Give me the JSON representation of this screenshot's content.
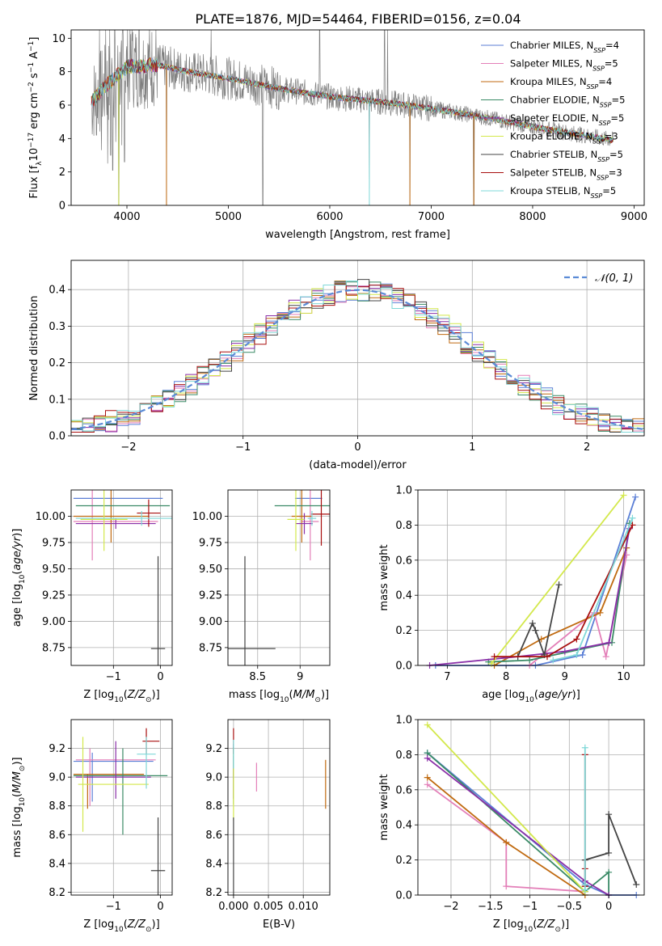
{
  "title": "PLATE=1876, MJD=54464, FIBERID=0156, z=0.04",
  "colors": {
    "chabrier_miles": "#5b7fd6",
    "salpeter_miles": "#e37fb8",
    "kroupa_miles": "#c06a10",
    "chabrier_elodie": "#3a8a66",
    "salpeter_elodie": "#8a2fa8",
    "kroupa_elodie": "#d3e84b",
    "chabrier_stelib": "#444444",
    "salpeter_stelib": "#a80f0f",
    "kroupa_stelib": "#7fd8d8",
    "grid": "#b0b0b0",
    "spectrum": "#7f7f7f",
    "normal_curve": "#5b8bd6"
  },
  "chart_data": [
    {
      "type": "line",
      "id": "spectrum",
      "xlabel": "wavelength [Angstrom, rest frame]",
      "ylabel_parts": [
        "Flux [f",
        "λ",
        "10",
        "−17",
        " erg cm",
        "−2",
        " s",
        "−1",
        " A",
        "−1",
        "]"
      ],
      "xlim": [
        3450,
        9100
      ],
      "ylim": [
        0,
        10.5
      ],
      "xticks": [
        4000,
        5000,
        6000,
        7000,
        8000,
        9000
      ],
      "yticks": [
        0,
        2,
        4,
        6,
        8,
        10
      ],
      "legend_position": "upper right",
      "legend": [
        {
          "key": "chabrier_miles",
          "label": "Chabrier MILES, N",
          "sub": "SSP",
          "suffix": "=4"
        },
        {
          "key": "salpeter_miles",
          "label": "Salpeter MILES, N",
          "sub": "SSP",
          "suffix": "=5"
        },
        {
          "key": "kroupa_miles",
          "label": "Kroupa MILES, N",
          "sub": "SSP",
          "suffix": "=4"
        },
        {
          "key": "chabrier_elodie",
          "label": "Chabrier ELODIE, N",
          "sub": "SSP",
          "suffix": "=5"
        },
        {
          "key": "salpeter_elodie",
          "label": "Salpeter ELODIE, N",
          "sub": "SSP",
          "suffix": "=5"
        },
        {
          "key": "kroupa_elodie",
          "label": "Kroupa ELODIE, N",
          "sub": "SSP",
          "suffix": "=3"
        },
        {
          "key": "chabrier_stelib",
          "label": "Chabrier STELIB, N",
          "sub": "SSP",
          "suffix": "=5"
        },
        {
          "key": "salpeter_stelib",
          "label": "Salpeter STELIB, N",
          "sub": "SSP",
          "suffix": "=3"
        },
        {
          "key": "kroupa_stelib",
          "label": "Kroupa STELIB, N",
          "sub": "SSP",
          "suffix": "=5"
        }
      ],
      "continuum": {
        "x": [
          3650,
          3800,
          4000,
          4300,
          4600,
          5000,
          5500,
          6000,
          6500,
          7000,
          7500,
          8000,
          8500,
          8800
        ],
        "y": [
          6.2,
          7.2,
          8.3,
          8.4,
          8.0,
          7.6,
          7.0,
          6.5,
          6.2,
          5.8,
          5.3,
          4.7,
          4.2,
          3.9
        ]
      },
      "dips": [
        {
          "x": 3700,
          "y": 4.2
        },
        {
          "x": 3750,
          "y": 3.3
        },
        {
          "x": 3810,
          "y": 2.5
        },
        {
          "x": 3840,
          "y": 3.0
        },
        {
          "x": 3860,
          "y": 2.1
        },
        {
          "x": 3890,
          "y": 3.8
        },
        {
          "x": 3920,
          "y": 0.0
        },
        {
          "x": 3950,
          "y": 3.6
        },
        {
          "x": 3975,
          "y": 2.6
        },
        {
          "x": 4390,
          "y": 0.0
        },
        {
          "x": 5340,
          "y": 0.0
        },
        {
          "x": 6390,
          "y": 1.0
        },
        {
          "x": 6790,
          "y": 0.0
        },
        {
          "x": 7420,
          "y": 0.0
        }
      ],
      "spikes": [
        {
          "x": 3730,
          "y": 10.5
        },
        {
          "x": 3790,
          "y": 10.5
        },
        {
          "x": 3830,
          "y": 10.5
        },
        {
          "x": 3880,
          "y": 10.5
        },
        {
          "x": 3960,
          "y": 10.5
        },
        {
          "x": 4050,
          "y": 10.5
        },
        {
          "x": 4120,
          "y": 10.5
        },
        {
          "x": 4830,
          "y": 10.5
        },
        {
          "x": 5900,
          "y": 10.5
        },
        {
          "x": 6540,
          "y": 10.5
        },
        {
          "x": 6570,
          "y": 10.5
        }
      ]
    },
    {
      "type": "histogram",
      "id": "residuals",
      "xlabel": "(data-model)/error",
      "ylabel": "Normed distribution",
      "xlim": [
        -2.5,
        2.5
      ],
      "ylim": [
        0,
        0.48
      ],
      "xticks": [
        -2,
        -1,
        0,
        1,
        2
      ],
      "yticks": [
        0.0,
        0.1,
        0.2,
        0.3,
        0.4
      ],
      "legend_position": "upper right",
      "legend_label": "𝒩(0, 1)",
      "bin_width": 0.1,
      "x_start": -2.5
    },
    {
      "type": "errorbar",
      "id": "age_vs_Z",
      "xlabel": "Z [log10(Z/Z⊙)]",
      "ylabel": "age  [log10(age/yr)]",
      "xlim": [
        -1.9,
        0.25
      ],
      "ylim": [
        8.58,
        10.25
      ],
      "xticks": [
        -1,
        0
      ],
      "yticks": [
        8.75,
        9.0,
        9.25,
        9.5,
        9.75,
        10.0
      ],
      "points": [
        {
          "key": "chabrier_miles",
          "x": -0.9,
          "xerr": 0.95,
          "y": 10.17,
          "yerr": 0.0
        },
        {
          "key": "salpeter_miles",
          "x": -0.95,
          "xerr": 0.9,
          "y": 9.95,
          "yerr": 0.0
        },
        {
          "key": "salpeter_miles",
          "x": -1.45,
          "xerr": 0.0,
          "y": 9.95,
          "yerr": 0.37
        },
        {
          "key": "kroupa_miles",
          "x": -1.05,
          "xerr": 0.8,
          "y": 10.0,
          "yerr": 0.25
        },
        {
          "key": "chabrier_elodie",
          "x": -0.8,
          "xerr": 1.0,
          "y": 10.1,
          "yerr": 0.0
        },
        {
          "key": "salpeter_elodie",
          "x": -0.95,
          "xerr": 0.85,
          "y": 9.93,
          "yerr": 0.05
        },
        {
          "key": "kroupa_elodie",
          "x": -1.2,
          "xerr": 0.5,
          "y": 9.97,
          "yerr": 0.3
        },
        {
          "key": "chabrier_stelib",
          "x": -0.05,
          "xerr": 0.15,
          "y": 8.74,
          "yerr": 0.88
        },
        {
          "key": "salpeter_stelib",
          "x": -0.25,
          "xerr": 0.25,
          "y": 10.03,
          "yerr": 0.13
        },
        {
          "key": "kroupa_stelib",
          "x": -0.4,
          "xerr": 1.4,
          "y": 9.98,
          "yerr": 0.07
        }
      ]
    },
    {
      "type": "errorbar",
      "id": "age_vs_mass",
      "xlabel": "mass [log10(M/M⊙)]",
      "ylabel": "",
      "xlim": [
        8.15,
        9.35
      ],
      "ylim": [
        8.58,
        10.25
      ],
      "xticks": [
        8.5,
        9.0
      ],
      "yticks": [
        8.75,
        9.0,
        9.25,
        9.5,
        9.75,
        10.0
      ],
      "points": [
        {
          "key": "chabrier_miles",
          "x": 9.1,
          "xerr": 0.16,
          "y": 10.17,
          "yerr": 0.0
        },
        {
          "key": "salpeter_miles",
          "x": 9.12,
          "xerr": 0.1,
          "y": 9.95,
          "yerr": 0.37
        },
        {
          "key": "kroupa_miles",
          "x": 9.02,
          "xerr": 0.12,
          "y": 10.0,
          "yerr": 0.25
        },
        {
          "key": "chabrier_elodie",
          "x": 9.05,
          "xerr": 0.35,
          "y": 10.1,
          "yerr": 0.0
        },
        {
          "key": "salpeter_elodie",
          "x": 9.05,
          "xerr": 0.1,
          "y": 9.93,
          "yerr": 0.1
        },
        {
          "key": "kroupa_elodie",
          "x": 8.95,
          "xerr": 0.1,
          "y": 9.97,
          "yerr": 0.3
        },
        {
          "key": "chabrier_stelib",
          "x": 8.35,
          "xerr": 0.36,
          "y": 8.74,
          "yerr": 0.88
        },
        {
          "key": "salpeter_stelib",
          "x": 9.25,
          "xerr": 0.12,
          "y": 10.02,
          "yerr": 0.3
        },
        {
          "key": "kroupa_stelib",
          "x": 9.14,
          "xerr": 0.05,
          "y": 9.98,
          "yerr": 0.07
        }
      ]
    },
    {
      "type": "line",
      "id": "massweight_vs_age",
      "xlabel": "age  [log10(age/yr)]",
      "ylabel": "mass weight",
      "xlim": [
        6.5,
        10.35
      ],
      "ylim": [
        0,
        1.0
      ],
      "xticks": [
        7,
        8,
        9,
        10
      ],
      "yticks": [
        0.0,
        0.2,
        0.4,
        0.6,
        0.8,
        1.0
      ],
      "series": [
        {
          "key": "chabrier_miles",
          "x": [
            6.8,
            8.5,
            9.3,
            10.2
          ],
          "y": [
            0.0,
            0.0,
            0.06,
            0.96
          ]
        },
        {
          "key": "salpeter_miles",
          "x": [
            8.4,
            9.5,
            9.7,
            10.05
          ],
          "y": [
            0.0,
            0.3,
            0.05,
            0.63
          ]
        },
        {
          "key": "kroupa_miles",
          "x": [
            7.8,
            8.6,
            9.6,
            10.05
          ],
          "y": [
            0.0,
            0.15,
            0.3,
            0.67
          ]
        },
        {
          "key": "chabrier_elodie",
          "x": [
            7.7,
            8.4,
            9.8,
            10.1
          ],
          "y": [
            0.02,
            0.03,
            0.13,
            0.81
          ]
        },
        {
          "key": "salpeter_elodie",
          "x": [
            6.7,
            8.2,
            9.0,
            9.75,
            10.1
          ],
          "y": [
            0.0,
            0.05,
            0.08,
            0.13,
            0.78
          ]
        },
        {
          "key": "kroupa_elodie",
          "x": [
            7.75,
            10.0
          ],
          "y": [
            0.01,
            0.97
          ]
        },
        {
          "key": "chabrier_stelib",
          "x": [
            8.2,
            8.45,
            8.5,
            8.65,
            8.9
          ],
          "y": [
            0.05,
            0.24,
            0.2,
            0.06,
            0.46
          ]
        },
        {
          "key": "salpeter_stelib",
          "x": [
            7.8,
            8.7,
            9.2,
            10.15
          ],
          "y": [
            0.05,
            0.05,
            0.15,
            0.8
          ]
        },
        {
          "key": "kroupa_stelib",
          "x": [
            8.8,
            9.2,
            10.15
          ],
          "y": [
            0.03,
            0.06,
            0.84
          ]
        }
      ]
    },
    {
      "type": "errorbar",
      "id": "mass_vs_Z",
      "xlabel": "Z [log10(Z/Z⊙)]",
      "ylabel": "mass [log10(M/M⊙)]",
      "xlim": [
        -1.9,
        0.25
      ],
      "ylim": [
        8.18,
        9.4
      ],
      "xticks": [
        -1,
        0
      ],
      "yticks": [
        8.2,
        8.4,
        8.6,
        8.8,
        9.0,
        9.2
      ],
      "points": [
        {
          "key": "chabrier_miles",
          "x": -1.0,
          "xerr": 0.85,
          "y": 9.11,
          "yerr": 0.0
        },
        {
          "key": "chabrier_miles",
          "x": -1.45,
          "xerr": 0.0,
          "y": 9.0,
          "yerr": 0.17
        },
        {
          "key": "salpeter_miles",
          "x": -0.95,
          "xerr": 0.85,
          "y": 9.12,
          "yerr": 0.0
        },
        {
          "key": "salpeter_miles",
          "x": -1.5,
          "xerr": 0.0,
          "y": 9.0,
          "yerr": 0.2
        },
        {
          "key": "kroupa_miles",
          "x": -1.1,
          "xerr": 0.75,
          "y": 9.02,
          "yerr": 0.0
        },
        {
          "key": "kroupa_miles",
          "x": -1.55,
          "xerr": 0.0,
          "y": 8.9,
          "yerr": 0.12
        },
        {
          "key": "chabrier_elodie",
          "x": -0.85,
          "xerr": 1.0,
          "y": 9.01,
          "yerr": 0.0
        },
        {
          "key": "chabrier_elodie",
          "x": -0.8,
          "xerr": 0.0,
          "y": 8.9,
          "yerr": 0.3
        },
        {
          "key": "salpeter_elodie",
          "x": -1.0,
          "xerr": 0.8,
          "y": 9.0,
          "yerr": 0.0
        },
        {
          "key": "salpeter_elodie",
          "x": -0.95,
          "xerr": 0.0,
          "y": 9.05,
          "yerr": 0.2
        },
        {
          "key": "kroupa_elodie",
          "x": -1.0,
          "xerr": 0.75,
          "y": 8.95,
          "yerr": 0.0
        },
        {
          "key": "kroupa_elodie",
          "x": -1.65,
          "xerr": 0.0,
          "y": 8.95,
          "yerr": 0.33
        },
        {
          "key": "chabrier_stelib",
          "x": -0.05,
          "xerr": 0.15,
          "y": 8.35,
          "yerr": 0.37
        },
        {
          "key": "salpeter_stelib",
          "x": -0.2,
          "xerr": 0.18,
          "y": 9.25,
          "yerr": 0.0
        },
        {
          "key": "salpeter_stelib",
          "x": -0.3,
          "xerr": 0.0,
          "y": 9.25,
          "yerr": 0.09
        },
        {
          "key": "kroupa_stelib",
          "x": -0.3,
          "xerr": 0.2,
          "y": 9.16,
          "yerr": 0.0
        },
        {
          "key": "kroupa_stelib",
          "x": -0.3,
          "xerr": 0.0,
          "y": 9.1,
          "yerr": 0.18
        }
      ]
    },
    {
      "type": "errorbar",
      "id": "mass_vs_ebv",
      "xlabel": "E(B-V)",
      "ylabel": "",
      "xlim": [
        -0.0008,
        0.0138
      ],
      "ylim": [
        8.18,
        9.4
      ],
      "xticks": [
        0.0,
        0.005,
        0.01
      ],
      "xticklabels": [
        "0.000",
        "0.005",
        "0.010"
      ],
      "yticks": [
        8.2,
        8.4,
        8.6,
        8.8,
        9.0,
        9.2
      ],
      "points": [
        {
          "key": "chabrier_miles",
          "x": 0.0,
          "xerr": 0.0,
          "y": 9.11,
          "yerr": 0.12
        },
        {
          "key": "salpeter_miles",
          "x": 0.0033,
          "xerr": 0.0,
          "y": 9.0,
          "yerr": 0.1
        },
        {
          "key": "kroupa_miles",
          "x": 0.0132,
          "xerr": 0.0,
          "y": 8.95,
          "yerr": 0.17
        },
        {
          "key": "chabrier_elodie",
          "x": 0.0,
          "xerr": 0.0,
          "y": 9.01,
          "yerr": 0.2
        },
        {
          "key": "salpeter_elodie",
          "x": 0.0,
          "xerr": 0.0,
          "y": 9.0,
          "yerr": 0.15
        },
        {
          "key": "kroupa_elodie",
          "x": 0.0,
          "xerr": 0.0,
          "y": 8.95,
          "yerr": 0.25
        },
        {
          "key": "chabrier_stelib",
          "x": 0.0,
          "xerr": 0.0,
          "y": 8.35,
          "yerr": 0.37
        },
        {
          "key": "salpeter_stelib",
          "x": 0.0,
          "xerr": 0.0,
          "y": 9.25,
          "yerr": 0.09
        },
        {
          "key": "kroupa_stelib",
          "x": 0.0,
          "xerr": 0.0,
          "y": 9.16,
          "yerr": 0.1
        }
      ]
    },
    {
      "type": "line",
      "id": "massweight_vs_Z",
      "xlabel": "Z [log10(Z/Z⊙)]",
      "ylabel": "mass weight",
      "xlim": [
        -2.42,
        0.45
      ],
      "ylim": [
        0,
        1.0
      ],
      "xticks": [
        -2.0,
        -1.5,
        -1.0,
        -0.5,
        0.0
      ],
      "yticks": [
        0.0,
        0.2,
        0.4,
        0.6,
        0.8,
        1.0
      ],
      "series": [
        {
          "key": "chabrier_miles",
          "x": [
            -2.3,
            -0.3,
            0.0,
            0.35
          ],
          "y": [
            0.81,
            0.06,
            0.0,
            0.0
          ]
        },
        {
          "key": "salpeter_miles",
          "x": [
            -2.3,
            -1.3,
            -1.3,
            -0.3
          ],
          "y": [
            0.63,
            0.3,
            0.05,
            0.02
          ]
        },
        {
          "key": "kroupa_miles",
          "x": [
            -2.3,
            -1.3,
            -0.3
          ],
          "y": [
            0.67,
            0.3,
            0.0
          ]
        },
        {
          "key": "chabrier_elodie",
          "x": [
            -2.3,
            -0.3,
            0.0,
            0.0
          ],
          "y": [
            0.81,
            0.02,
            0.13,
            0.0
          ]
        },
        {
          "key": "salpeter_elodie",
          "x": [
            -2.3,
            -0.3,
            0.0
          ],
          "y": [
            0.78,
            0.08,
            0.0
          ]
        },
        {
          "key": "kroupa_elodie",
          "x": [
            -2.3,
            -0.3
          ],
          "y": [
            0.97,
            0.02
          ]
        },
        {
          "key": "chabrier_stelib",
          "x": [
            -0.3,
            -0.3,
            0.0,
            0.0,
            0.35
          ],
          "y": [
            0.05,
            0.2,
            0.24,
            0.46,
            0.06
          ]
        },
        {
          "key": "salpeter_stelib",
          "x": [
            -0.3,
            -0.3,
            -0.3
          ],
          "y": [
            0.05,
            0.15,
            0.8
          ]
        },
        {
          "key": "kroupa_stelib",
          "x": [
            -0.3,
            -0.3,
            -0.3
          ],
          "y": [
            0.03,
            0.06,
            0.84
          ]
        }
      ]
    }
  ]
}
